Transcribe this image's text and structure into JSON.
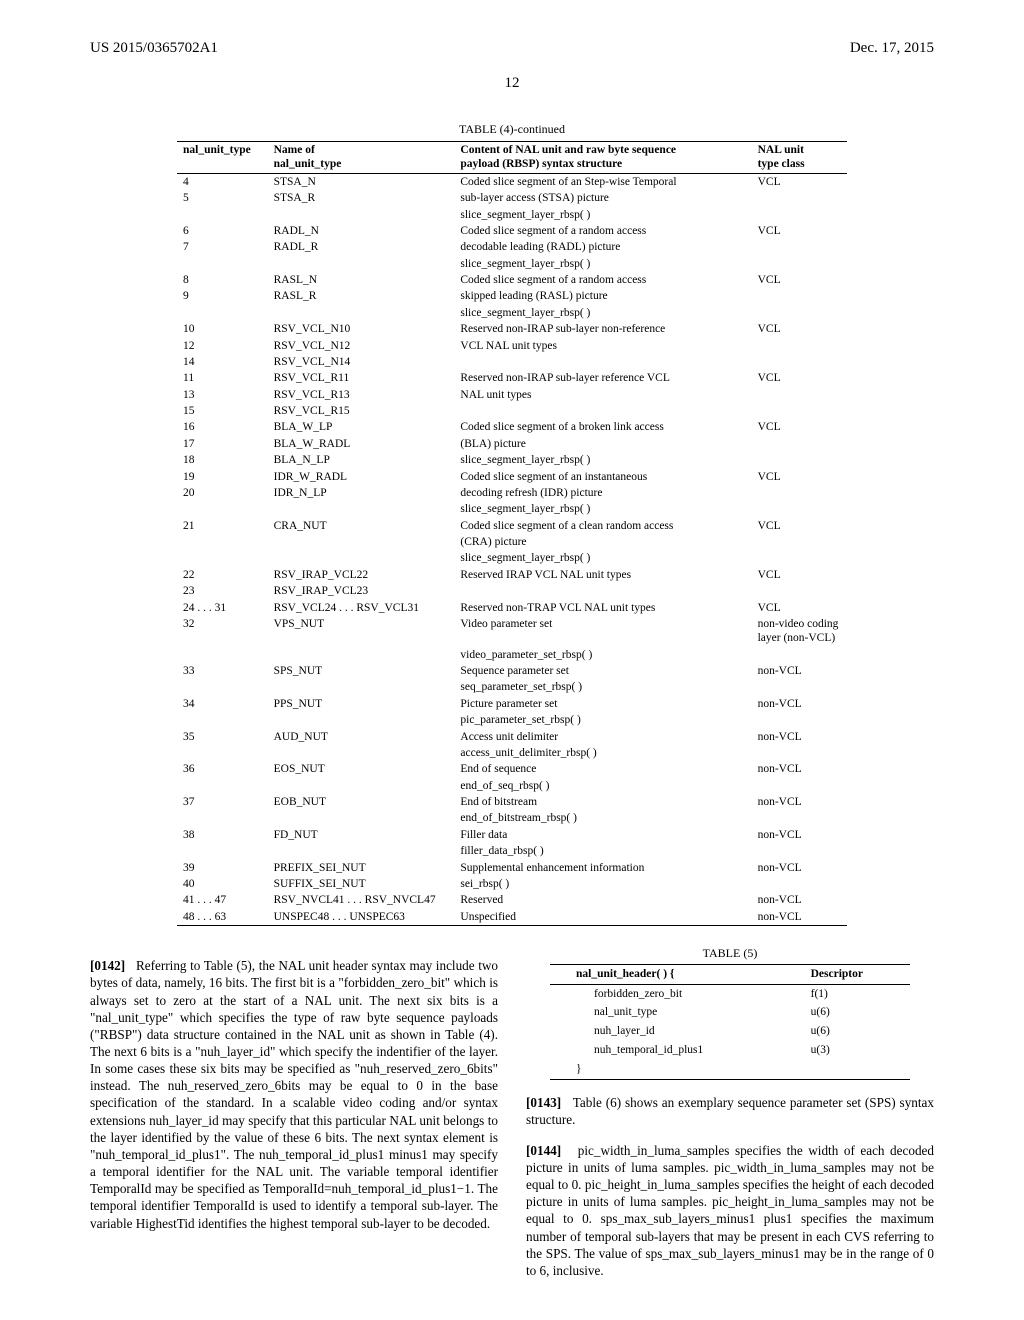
{
  "header": {
    "left": "US 2015/0365702A1",
    "right": "Dec. 17, 2015",
    "page_number": "12"
  },
  "table4": {
    "caption": "TABLE (4)-continued",
    "columns": {
      "c1a": "nal_unit_type",
      "c1b_top": "Name of",
      "c1b_bot": "nal_unit_type",
      "c2_top": "Content of NAL unit and raw byte sequence",
      "c2_bot": "payload (RBSP) syntax structure",
      "c3_top": "NAL unit",
      "c3_bot": "type class"
    },
    "rows": [
      {
        "ids": [
          "4",
          "5"
        ],
        "names": [
          "STSA_N",
          "STSA_R"
        ],
        "desc": [
          "Coded slice segment of an Step-wise Temporal",
          "sub-layer access (STSA) picture",
          "slice_segment_layer_rbsp( )"
        ],
        "cls": "VCL"
      },
      {
        "ids": [
          "6",
          "7"
        ],
        "names": [
          "RADL_N",
          "RADL_R"
        ],
        "desc": [
          "Coded slice segment of a random access",
          "decodable leading (RADL) picture",
          "slice_segment_layer_rbsp( )"
        ],
        "cls": "VCL"
      },
      {
        "ids": [
          "8",
          "9"
        ],
        "names": [
          "RASL_N",
          "RASL_R"
        ],
        "desc": [
          "Coded slice segment of a random access",
          "skipped leading (RASL) picture",
          "slice_segment_layer_rbsp( )"
        ],
        "cls": "VCL"
      },
      {
        "ids": [
          "10",
          "12",
          "14"
        ],
        "names": [
          "RSV_VCL_N10",
          "RSV_VCL_N12",
          "RSV_VCL_N14"
        ],
        "desc": [
          "Reserved non-IRAP sub-layer non-reference",
          "VCL NAL unit types"
        ],
        "cls": "VCL"
      },
      {
        "ids": [
          "11",
          "13",
          "15"
        ],
        "names": [
          "RSV_VCL_R11",
          "RSV_VCL_R13",
          "RSV_VCL_R15"
        ],
        "desc": [
          "Reserved non-IRAP sub-layer reference VCL",
          "NAL unit types"
        ],
        "cls": "VCL"
      },
      {
        "ids": [
          "16",
          "17",
          "18"
        ],
        "names": [
          "BLA_W_LP",
          "BLA_W_RADL",
          "BLA_N_LP"
        ],
        "desc": [
          "Coded slice segment of a broken link access",
          "(BLA) picture",
          "slice_segment_layer_rbsp( )"
        ],
        "cls": "VCL"
      },
      {
        "ids": [
          "19",
          "20"
        ],
        "names": [
          "IDR_W_RADL",
          "IDR_N_LP"
        ],
        "desc": [
          "Coded slice segment of an instantaneous",
          "decoding refresh (IDR) picture",
          "slice_segment_layer_rbsp( )"
        ],
        "cls": "VCL"
      },
      {
        "ids": [
          "21"
        ],
        "names": [
          "CRA_NUT"
        ],
        "desc": [
          "Coded slice segment of a clean random access",
          "(CRA) picture",
          "slice_segment_layer_rbsp( )"
        ],
        "cls": "VCL"
      },
      {
        "ids": [
          "22",
          "23"
        ],
        "names": [
          "RSV_IRAP_VCL22",
          "RSV_IRAP_VCL23"
        ],
        "desc": [
          "Reserved IRAP VCL NAL unit types"
        ],
        "cls": "VCL"
      },
      {
        "ids": [
          "24 . . . 31"
        ],
        "names": [
          "RSV_VCL24 . . . RSV_VCL31"
        ],
        "desc": [
          "Reserved non-TRAP VCL NAL unit types"
        ],
        "cls": "VCL"
      },
      {
        "ids": [
          "32"
        ],
        "names": [
          "VPS_NUT"
        ],
        "desc": [
          "Video parameter set",
          "video_parameter_set_rbsp( )"
        ],
        "cls": "non-video coding layer (non-VCL)"
      },
      {
        "ids": [
          "33"
        ],
        "names": [
          "SPS_NUT"
        ],
        "desc": [
          "Sequence parameter set",
          "seq_parameter_set_rbsp( )"
        ],
        "cls": "non-VCL"
      },
      {
        "ids": [
          "34"
        ],
        "names": [
          "PPS_NUT"
        ],
        "desc": [
          "Picture parameter set",
          "pic_parameter_set_rbsp( )"
        ],
        "cls": "non-VCL"
      },
      {
        "ids": [
          "35"
        ],
        "names": [
          "AUD_NUT"
        ],
        "desc": [
          "Access unit delimiter",
          "access_unit_delimiter_rbsp( )"
        ],
        "cls": "non-VCL"
      },
      {
        "ids": [
          "36"
        ],
        "names": [
          "EOS_NUT"
        ],
        "desc": [
          "End of sequence",
          "end_of_seq_rbsp( )"
        ],
        "cls": "non-VCL"
      },
      {
        "ids": [
          "37"
        ],
        "names": [
          "EOB_NUT"
        ],
        "desc": [
          "End of bitstream",
          "end_of_bitstream_rbsp( )"
        ],
        "cls": "non-VCL"
      },
      {
        "ids": [
          "38"
        ],
        "names": [
          "FD_NUT"
        ],
        "desc": [
          "Filler data",
          "filler_data_rbsp( )"
        ],
        "cls": "non-VCL"
      },
      {
        "ids": [
          "39",
          "40"
        ],
        "names": [
          "PREFIX_SEI_NUT",
          "SUFFIX_SEI_NUT"
        ],
        "desc": [
          "Supplemental enhancement information",
          "sei_rbsp( )"
        ],
        "cls": "non-VCL"
      },
      {
        "ids": [
          "41 . . . 47"
        ],
        "names": [
          "RSV_NVCL41 . . . RSV_NVCL47"
        ],
        "desc": [
          "Reserved"
        ],
        "cls": "non-VCL"
      },
      {
        "ids": [
          "48 . . . 63"
        ],
        "names": [
          "UNSPEC48 . . . UNSPEC63"
        ],
        "desc": [
          "Unspecified"
        ],
        "cls": "non-VCL"
      }
    ]
  },
  "para0142": {
    "num": "[0142]",
    "text": "Referring to Table (5), the NAL unit header syntax may include two bytes of data, namely, 16 bits. The first bit is a \"forbidden_zero_bit\" which is always set to zero at the start of a NAL unit. The next six bits is a \"nal_unit_type\" which specifies the type of raw byte sequence payloads (\"RBSP\") data structure contained in the NAL unit as shown in Table (4). The next 6 bits is a \"nuh_layer_id\" which specify the indentifier of the layer. In some cases these six bits may be specified as \"nuh_reserved_zero_6bits\" instead. The nuh_reserved_zero_6bits may be equal to 0 in the base specification of the standard. In a scalable video coding and/or syntax extensions nuh_layer_id may specify that this particular NAL unit belongs to the layer identified by the value of these 6 bits. The next syntax element is \"nuh_temporal_id_plus1\". The nuh_temporal_id_plus1 minus1 may specify a temporal identifier for the NAL unit. The variable temporal identifier TemporalId may be specified as TemporalId=nuh_temporal_id_plus1−1. The temporal identifier TemporalId is used to identify a temporal sub-layer. The variable HighestTid identifies the highest temporal sub-layer to be decoded."
  },
  "table5": {
    "caption": "TABLE (5)",
    "header": {
      "c1": "nal_unit_header( ) {",
      "c2": "Descriptor"
    },
    "rows": [
      {
        "name": "forbidden_zero_bit",
        "desc": "f(1)"
      },
      {
        "name": "nal_unit_type",
        "desc": "u(6)"
      },
      {
        "name": "nuh_layer_id",
        "desc": "u(6)"
      },
      {
        "name": "nuh_temporal_id_plus1",
        "desc": "u(3)"
      }
    ],
    "close": "}"
  },
  "para0143": {
    "num": "[0143]",
    "text": "Table (6) shows an exemplary sequence parameter set (SPS) syntax structure."
  },
  "para0144": {
    "num": "[0144]",
    "text": "pic_width_in_luma_samples specifies the width of each decoded picture in units of luma samples. pic_width_in_luma_samples may not be equal to 0. pic_height_in_luma_samples specifies the height of each decoded picture in units of luma samples. pic_height_in_luma_samples may not be equal to 0. sps_max_sub_layers_minus1 plus1 specifies the maximum number of temporal sub-layers that may be present in each CVS referring to the SPS. The value of sps_max_sub_layers_minus1 may be in the range of 0 to 6, inclusive."
  }
}
